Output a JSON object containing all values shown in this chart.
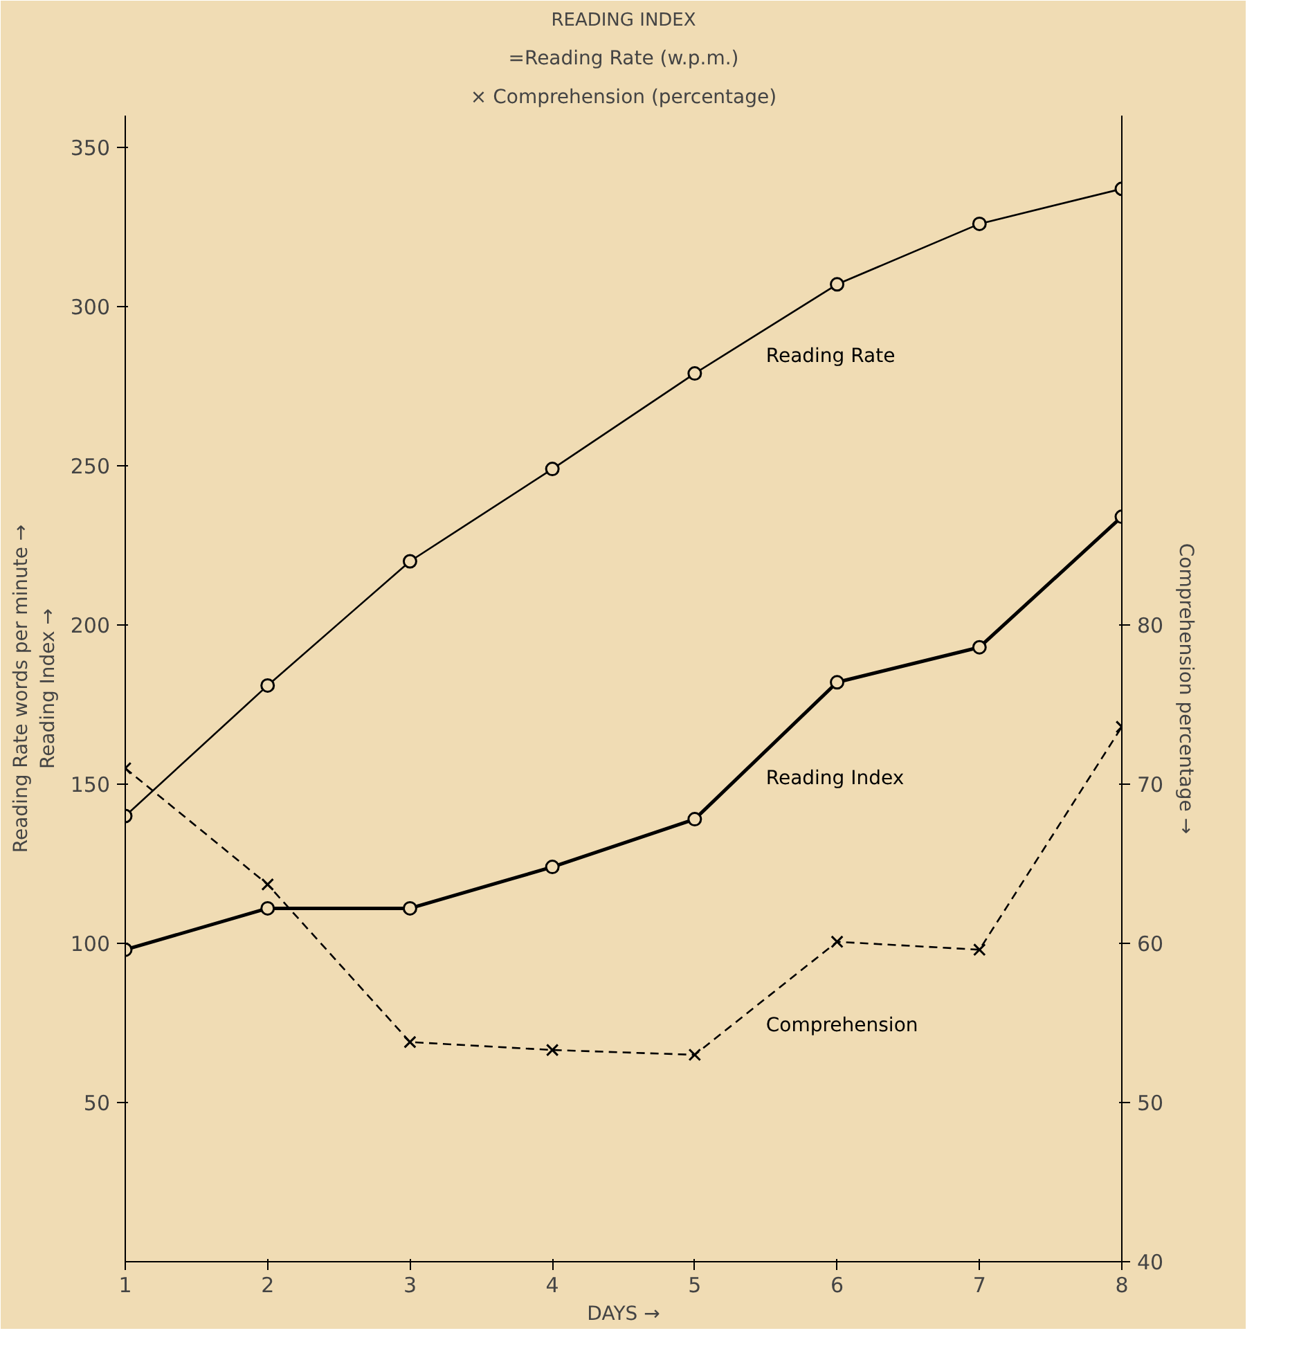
{
  "chart_data": {
    "type": "line",
    "title": "READING INDEX",
    "xlabel": "DAYS →",
    "ylabel": "Reading Rate words per minute →\nReading Index →",
    "y2label": "Comprehension percentage →",
    "annotations": [
      "=Reading Rate (w.p.m.)",
      "× Comprehension (percentage)"
    ],
    "x": [
      1,
      2,
      3,
      4,
      5,
      6,
      7,
      8
    ],
    "series": [
      {
        "name": "Reading Rate",
        "color": "#000000",
        "marker": "circle",
        "line_style": "solid",
        "values": [
          140,
          181,
          220,
          249,
          279,
          307,
          326,
          337
        ]
      },
      {
        "name": "Reading Index",
        "color": "#000000",
        "marker": "circle",
        "line_style": "solid",
        "values": [
          98,
          111,
          111,
          124,
          139,
          182,
          193,
          234
        ]
      },
      {
        "name": "Comprehension",
        "color": "#000000",
        "marker": "cross",
        "line_style": "dashed",
        "axis": "y2",
        "values": [
          71,
          63.7,
          53.8,
          53.3,
          53,
          60.1,
          59.6,
          73.6
        ]
      }
    ],
    "xlim": [
      1,
      8
    ],
    "xticks": [
      1,
      2,
      3,
      4,
      5,
      6,
      7,
      8
    ],
    "ylim": [
      0,
      360
    ],
    "yticks": [
      50,
      100,
      150,
      200,
      250,
      300,
      350
    ],
    "y2lim": [
      40,
      112
    ],
    "y2ticks": [
      40,
      50,
      60,
      70,
      80
    ],
    "grid": false
  }
}
